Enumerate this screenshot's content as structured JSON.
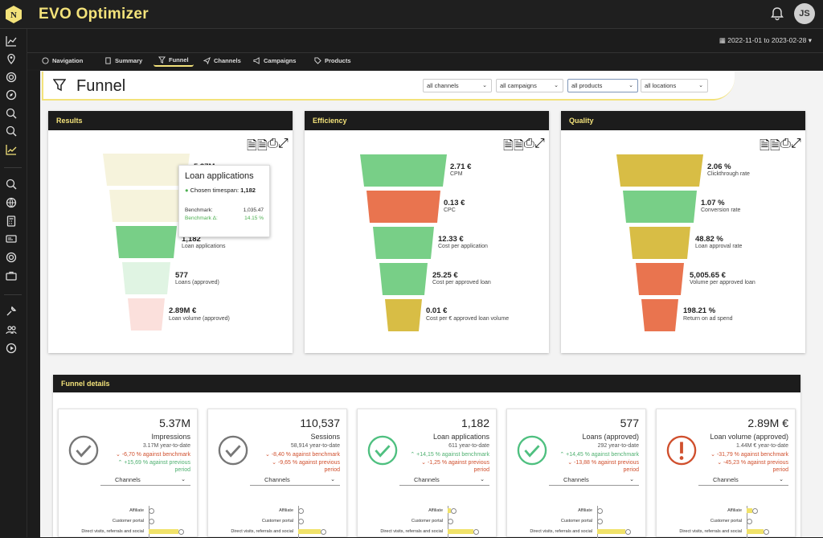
{
  "app": {
    "title": "EVO Optimizer",
    "user_initials": "JS"
  },
  "date_range": "2022-11-01 to 2023-02-28",
  "tabs": [
    {
      "label": "Navigation"
    },
    {
      "label": "Summary"
    },
    {
      "label": "Funnel"
    },
    {
      "label": "Channels"
    },
    {
      "label": "Campaigns"
    },
    {
      "label": "Products"
    }
  ],
  "page": {
    "title": "Funnel"
  },
  "filters": [
    "all channels",
    "all campaigns",
    "all products",
    "all locations"
  ],
  "panels": {
    "results": {
      "title": "Results",
      "rows": [
        {
          "value": "5.37M",
          "label": ""
        },
        {
          "value": "",
          "label": ""
        },
        {
          "value": "1,182",
          "label": "Loan applications"
        },
        {
          "value": "577",
          "label": "Loans (approved)"
        },
        {
          "value": "2.89M €",
          "label": "Loan volume (approved)"
        }
      ]
    },
    "efficiency": {
      "title": "Efficiency",
      "rows": [
        {
          "value": "2.71 €",
          "label": "CPM"
        },
        {
          "value": "0.13 €",
          "label": "CPC"
        },
        {
          "value": "12.33 €",
          "label": "Cost per application"
        },
        {
          "value": "25.25 €",
          "label": "Cost per approved loan"
        },
        {
          "value": "0.01 €",
          "label": "Cost per € approved loan volume"
        }
      ]
    },
    "quality": {
      "title": "Quality",
      "rows": [
        {
          "value": "2.06 %",
          "label": "Clickthrough rate"
        },
        {
          "value": "1.07 %",
          "label": "Conversion rate"
        },
        {
          "value": "48.82 %",
          "label": "Loan approval rate"
        },
        {
          "value": "5,005.65 €",
          "label": "Volume per approved loan"
        },
        {
          "value": "198.21 %",
          "label": "Return on ad spend"
        }
      ]
    }
  },
  "tooltip": {
    "title": "Loan applications",
    "chosen_label": "Chosen timespan:",
    "chosen_value": "1,182",
    "benchmark_label": "Benchmark:",
    "benchmark_value": "1,035.47",
    "delta_label": "Benchmark Δ:",
    "delta_value": "14.15 %"
  },
  "details": {
    "title": "Funnel details",
    "channels_label": "Channels",
    "bar_labels": [
      "Affiliate",
      "Customer portal",
      "Direct visits, referrals and social"
    ],
    "cards": [
      {
        "value": "5.37M",
        "name": "Impressions",
        "ytd": "3.17M year-to-date",
        "b1": "-6,70 % against benchmark",
        "b2": "+15,69 % against previous",
        "b3": "period",
        "status": "ok",
        "bars": [
          0.0,
          0.0,
          0.8
        ]
      },
      {
        "value": "110,537",
        "name": "Sessions",
        "ytd": "58,914 year-to-date",
        "b1": "-8,40 % against benchmark",
        "b2": "-9,65 % against previous",
        "b3": "period",
        "status": "ok",
        "bars": [
          0.0,
          0.0,
          0.6
        ]
      },
      {
        "value": "1,182",
        "name": "Loan applications",
        "ytd": "611 year-to-date",
        "b1": "+14,15 % against benchmark",
        "b2": "-1,25 % against previous",
        "b3": "period",
        "status": "good",
        "bars": [
          0.08,
          0.0,
          0.7
        ]
      },
      {
        "value": "577",
        "name": "Loans (approved)",
        "ytd": "292 year-to-date",
        "b1": "+14,45 % against benchmark",
        "b2": "-13,88 % against previous",
        "b3": "period",
        "status": "good",
        "bars": [
          0.0,
          0.0,
          0.75
        ]
      },
      {
        "value": "2.89M €",
        "name": "Loan volume (approved)",
        "ytd": "1.44M € year-to-date",
        "b1": "-31,79 % against benchmark",
        "b2": "-45,23 % against previous",
        "b3": "period",
        "status": "bad",
        "bars": [
          0.15,
          0.0,
          0.45
        ]
      }
    ]
  }
}
